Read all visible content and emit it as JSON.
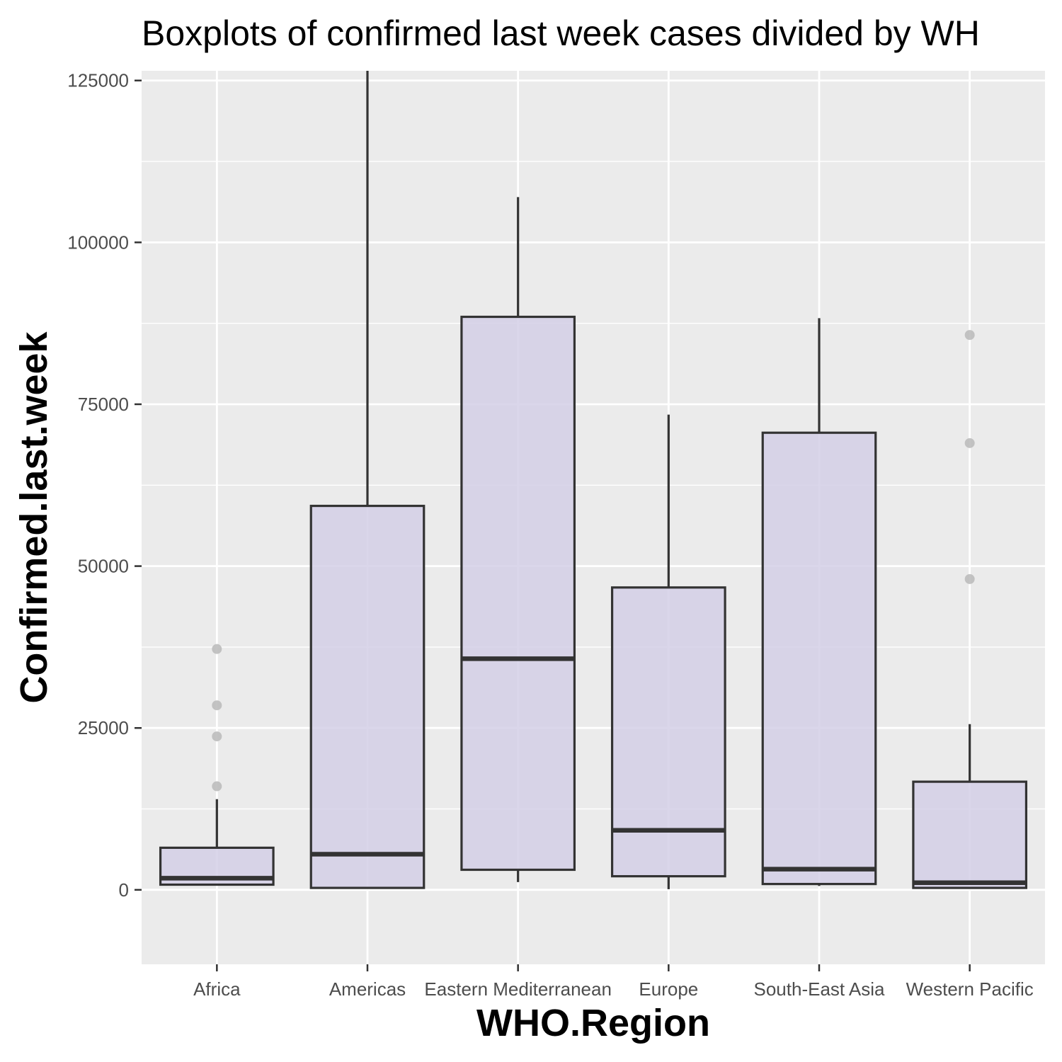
{
  "chart_data": {
    "type": "box",
    "title": "Boxplots of confirmed last week cases divided by WH",
    "xlabel": "WHO.Region",
    "ylabel": "Confirmed.last.week",
    "ylim": [
      -11500,
      126500
    ],
    "yticks": [
      0,
      25000,
      50000,
      75000,
      100000,
      125000
    ],
    "ytick_labels": [
      "0",
      "25000",
      "50000",
      "75000",
      "100000",
      "125000"
    ],
    "grid": true,
    "legend": "none",
    "colors": {
      "panel_background": "#ebebeb",
      "grid": "#ffffff",
      "box_fill": "#d4cfe6",
      "box_stroke": "#333333",
      "outlier": "#bdbdbd"
    },
    "categories": [
      "Africa",
      "Americas",
      "Eastern Mediterranean",
      "Europe",
      "South-East Asia",
      "Western Pacific"
    ],
    "boxes": [
      {
        "category": "Africa",
        "whisker_low": 800,
        "q1": 800,
        "median": 1800,
        "q3": 6500,
        "whisker_high": 14000,
        "outliers": [
          16000,
          23700,
          28500,
          37200
        ]
      },
      {
        "category": "Americas",
        "whisker_low": 300,
        "q1": 300,
        "median": 5500,
        "q3": 59300,
        "whisker_high": 126500,
        "outliers": []
      },
      {
        "category": "Eastern Mediterranean",
        "whisker_low": 1200,
        "q1": 3100,
        "median": 35700,
        "q3": 88500,
        "whisker_high": 107000,
        "outliers": []
      },
      {
        "category": "Europe",
        "whisker_low": 100,
        "q1": 2100,
        "median": 9200,
        "q3": 46700,
        "whisker_high": 73400,
        "outliers": []
      },
      {
        "category": "South-East Asia",
        "whisker_low": 600,
        "q1": 900,
        "median": 3200,
        "q3": 70600,
        "whisker_high": 88300,
        "outliers": []
      },
      {
        "category": "Western Pacific",
        "whisker_low": 200,
        "q1": 300,
        "median": 1100,
        "q3": 16700,
        "whisker_high": 25600,
        "outliers": [
          48000,
          69000,
          85700
        ]
      }
    ]
  }
}
